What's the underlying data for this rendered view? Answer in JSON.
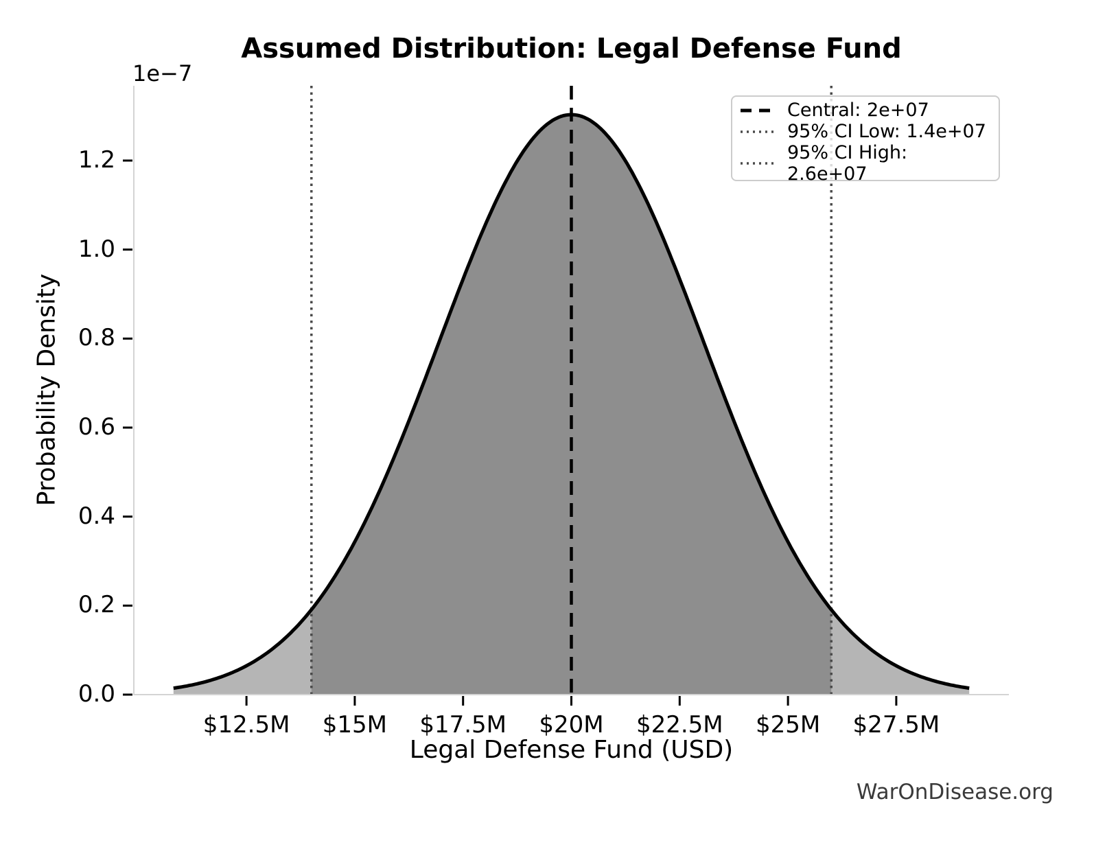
{
  "title": "Assumed Distribution: Legal Defense Fund",
  "watermark": "WarOnDisease.org",
  "chart_data": {
    "type": "area",
    "subtype": "normal-distribution-pdf",
    "title": "Assumed Distribution: Legal Defense Fund",
    "xlabel": "Legal Defense Fund (USD)",
    "ylabel": "Probability Density",
    "y_offset_label": "1e−7",
    "central": 20000000,
    "ci_low": 14000000,
    "ci_high": 26000000,
    "sigma": 3061224,
    "peak_density_1e7": 1.303,
    "curve_range_usd": [
      10816327,
      29183673
    ],
    "axes": {
      "xlim": [
        9900000,
        30100000
      ],
      "ylim_1e7": [
        0,
        1.368
      ],
      "grid": false
    },
    "x_ticks": [
      {
        "value": 12500000,
        "label": "$12.5M"
      },
      {
        "value": 15000000,
        "label": "$15M"
      },
      {
        "value": 17500000,
        "label": "$17.5M"
      },
      {
        "value": 20000000,
        "label": "$20M"
      },
      {
        "value": 22500000,
        "label": "$22.5M"
      },
      {
        "value": 25000000,
        "label": "$25M"
      },
      {
        "value": 27500000,
        "label": "$27.5M"
      }
    ],
    "y_ticks": [
      {
        "value": 0.0,
        "label": "0.0"
      },
      {
        "value": 0.2,
        "label": "0.2"
      },
      {
        "value": 0.4,
        "label": "0.4"
      },
      {
        "value": 0.6,
        "label": "0.6"
      },
      {
        "value": 0.8,
        "label": "0.8"
      },
      {
        "value": 1.0,
        "label": "1.0"
      },
      {
        "value": 1.2,
        "label": "1.2"
      }
    ],
    "legend": {
      "position": "upper right",
      "items": [
        {
          "label": "Central: 2e+07",
          "style": "dashed",
          "color": "#000000"
        },
        {
          "label": "95% CI Low: 1.4e+07",
          "style": "dotted",
          "color": "#4a4a4a"
        },
        {
          "label": "95% CI High: 2.6e+07",
          "style": "dotted",
          "color": "#4a4a4a"
        }
      ]
    },
    "colors": {
      "curve": "#000000",
      "central_line": "#000000",
      "ci_line": "#4a4a4a",
      "tail_fill": "#b5b5b5",
      "center_fill": "#8e8e8e",
      "spine": "#d4d4d4",
      "tick": "#000000",
      "watermark": "#3a3a3a"
    }
  }
}
